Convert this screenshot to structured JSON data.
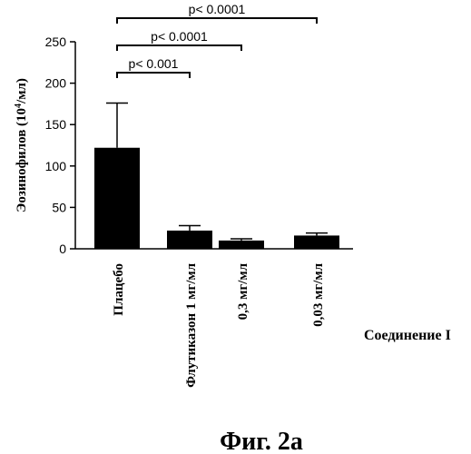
{
  "chart_data": {
    "type": "bar",
    "ylabel_main": "Эозинофилов (10",
    "ylabel_sup": "4",
    "ylabel_tail": "/мл)",
    "ylim": [
      0,
      250
    ],
    "yticks": [
      0,
      50,
      100,
      150,
      200,
      250
    ],
    "categories": [
      "Плацебо",
      "Флутиказон 1 мг/мл",
      "0,3 мг/мл",
      "0,03 мг/мл"
    ],
    "values": [
      122,
      22,
      10,
      16
    ],
    "errors": [
      54,
      6,
      2,
      3
    ],
    "significance": [
      {
        "from": 0,
        "to": 1,
        "label": "p< 0.001"
      },
      {
        "from": 0,
        "to": 2,
        "label": "p< 0.0001"
      },
      {
        "from": 0,
        "to": 3,
        "label": "p< 0.0001"
      }
    ],
    "group_label": "Соединение I",
    "bar_color": "#000000"
  },
  "caption": "Фиг. 2а"
}
